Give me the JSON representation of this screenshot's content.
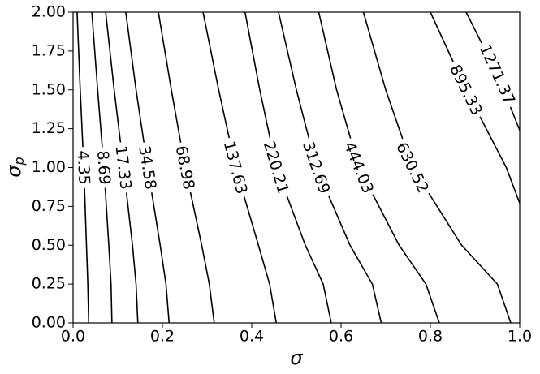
{
  "chart_data": {
    "type": "contour",
    "xlabel": "σ",
    "ylabel": {
      "main": "σ",
      "sub": "p"
    },
    "xlim": [
      0,
      1
    ],
    "ylim": [
      0,
      2
    ],
    "xticks": [
      {
        "value": 0,
        "label": "0.0"
      },
      {
        "value": 0.2,
        "label": "0.2"
      },
      {
        "value": 0.4,
        "label": "0.4"
      },
      {
        "value": 0.6,
        "label": "0.6"
      },
      {
        "value": 0.8,
        "label": "0.8"
      },
      {
        "value": 1,
        "label": "1.0"
      }
    ],
    "yticks": [
      {
        "value": 0,
        "label": "0.00"
      },
      {
        "value": 0.25,
        "label": "0.25"
      },
      {
        "value": 0.5,
        "label": "0.50"
      },
      {
        "value": 0.75,
        "label": "0.75"
      },
      {
        "value": 1,
        "label": "1.00"
      },
      {
        "value": 1.25,
        "label": "1.25"
      },
      {
        "value": 1.5,
        "label": "1.50"
      },
      {
        "value": 1.75,
        "label": "1.75"
      },
      {
        "value": 2,
        "label": "2.00"
      }
    ],
    "color": "#000000",
    "contours": [
      {
        "level": 4.35,
        "x": [
          0.009,
          0.016,
          0.024,
          0.03,
          0.033,
          0.035
        ],
        "y": [
          2,
          1.5,
          1,
          0.5,
          0.25,
          0
        ]
      },
      {
        "level": 8.69,
        "x": [
          0.042,
          0.055,
          0.069,
          0.08,
          0.085,
          0.087
        ],
        "y": [
          2,
          1.5,
          1,
          0.5,
          0.25,
          0
        ]
      },
      {
        "level": 17.33,
        "x": [
          0.073,
          0.092,
          0.113,
          0.133,
          0.141,
          0.145
        ],
        "y": [
          2,
          1.5,
          1,
          0.5,
          0.25,
          0
        ]
      },
      {
        "level": 34.58,
        "x": [
          0.118,
          0.141,
          0.167,
          0.195,
          0.208,
          0.215
        ],
        "y": [
          2,
          1.5,
          1,
          0.5,
          0.25,
          0
        ]
      },
      {
        "level": 68.98,
        "x": [
          0.191,
          0.22,
          0.251,
          0.288,
          0.305,
          0.316
        ],
        "y": [
          2,
          1.5,
          1,
          0.5,
          0.25,
          0
        ]
      },
      {
        "level": 137.63,
        "x": [
          0.291,
          0.326,
          0.364,
          0.415,
          0.44,
          0.455
        ],
        "y": [
          2,
          1.5,
          1,
          0.5,
          0.25,
          0
        ]
      },
      {
        "level": 220.21,
        "x": [
          0.385,
          0.418,
          0.455,
          0.52,
          0.56,
          0.578
        ],
        "y": [
          2,
          1.5,
          1,
          0.5,
          0.25,
          0
        ]
      },
      {
        "level": 312.69,
        "x": [
          0.46,
          0.5,
          0.545,
          0.62,
          0.67,
          0.69
        ],
        "y": [
          2,
          1.5,
          1,
          0.5,
          0.25,
          0
        ]
      },
      {
        "level": 444.03,
        "x": [
          0.55,
          0.59,
          0.64,
          0.73,
          0.79,
          0.82
        ],
        "y": [
          2,
          1.5,
          1,
          0.5,
          0.25,
          0
        ]
      },
      {
        "level": 630.52,
        "x": [
          0.65,
          0.7,
          0.76,
          0.87,
          0.95,
          0.98
        ],
        "y": [
          2,
          1.5,
          1,
          0.5,
          0.25,
          0
        ]
      },
      {
        "level": 895.33,
        "x": [
          0.8,
          0.88,
          0.97,
          1
        ],
        "y": [
          2,
          1.5,
          1,
          0.77
        ]
      },
      {
        "level": 1271.37,
        "x": [
          0.88,
          0.95,
          1
        ],
        "y": [
          2,
          1.6,
          1.24
        ]
      }
    ]
  }
}
